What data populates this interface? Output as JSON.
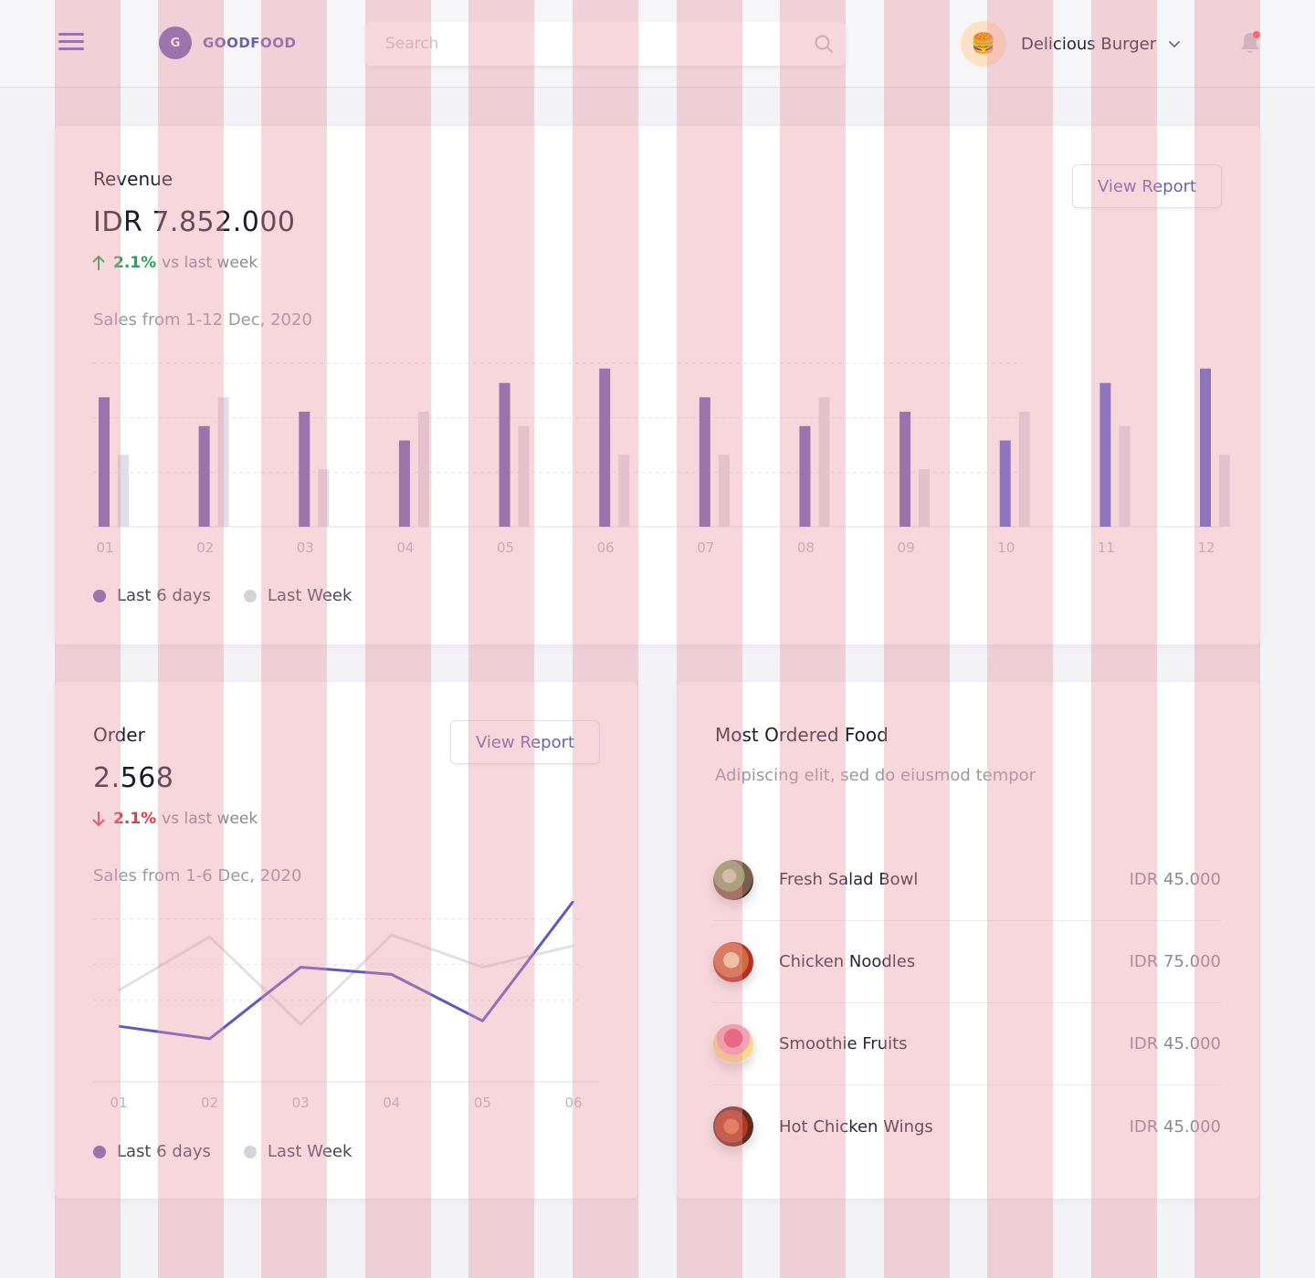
{
  "header": {
    "brand_letter": "G",
    "brand_name": "GOODFOOD",
    "search_placeholder": "Search",
    "profile_name": "Delicious Burger",
    "profile_avatar": "🍔",
    "notification_badge_color": "#ff4d4f"
  },
  "colors": {
    "primary": "#6f5fb2",
    "secondary_series": "#d5d3d9",
    "up": "#2aa15a",
    "down": "#e23b4c",
    "blue_bar": "#5a5fd0"
  },
  "revenue": {
    "title": "Revenue",
    "value": "IDR 7.852.000",
    "delta_pct": "2.1%",
    "delta_text": "vs last week",
    "direction": "up",
    "range": "Sales from 1-12 Dec, 2020",
    "button": "View Report"
  },
  "order": {
    "title": "Order",
    "value": "2.568",
    "delta_pct": "2.1%",
    "delta_text": "vs last week",
    "direction": "down",
    "range": "Sales from 1-6 Dec, 2020",
    "button": "View Report"
  },
  "legend": {
    "series_a": "Last 6 days",
    "series_b": "Last Week"
  },
  "most_ordered": {
    "title": "Most Ordered Food",
    "subtitle": "Adipiscing elit, sed do eiusmod tempor",
    "items": [
      {
        "name": "Fresh Salad Bowl",
        "price": "IDR 45.000",
        "icon": "salad-bowl-image"
      },
      {
        "name": "Chicken Noodles",
        "price": "IDR 75.000",
        "icon": "chicken-noodles-image"
      },
      {
        "name": "Smoothie Fruits",
        "price": "IDR 45.000",
        "icon": "smoothie-fruits-image"
      },
      {
        "name": "Hot Chicken Wings",
        "price": "IDR 45.000",
        "icon": "chicken-wings-image"
      }
    ]
  },
  "chart_data": [
    {
      "type": "bar",
      "categories": [
        "01",
        "02",
        "03",
        "04",
        "05",
        "06",
        "07",
        "08",
        "09",
        "10",
        "11",
        "12"
      ],
      "series": [
        {
          "name": "Last 6 days",
          "values": [
            9,
            7,
            8,
            6,
            10,
            11,
            9,
            7,
            8,
            6,
            10,
            11
          ]
        },
        {
          "name": "Last Week",
          "values": [
            5,
            9,
            4,
            8,
            7,
            5,
            5,
            9,
            4,
            8,
            7,
            5
          ]
        }
      ],
      "ylim": [
        0,
        12
      ],
      "grid": true,
      "legend": "bottom-left"
    },
    {
      "type": "line",
      "categories": [
        "01",
        "02",
        "03",
        "04",
        "05",
        "06"
      ],
      "series": [
        {
          "name": "Last 6 days",
          "values": [
            3.0,
            2.3,
            6.3,
            5.9,
            3.3,
            10.0
          ]
        },
        {
          "name": "Last Week",
          "values": [
            5.0,
            8.0,
            3.1,
            8.1,
            6.3,
            7.5
          ]
        }
      ],
      "ylim": [
        0,
        10
      ],
      "grid": true,
      "legend": "bottom-left"
    }
  ]
}
